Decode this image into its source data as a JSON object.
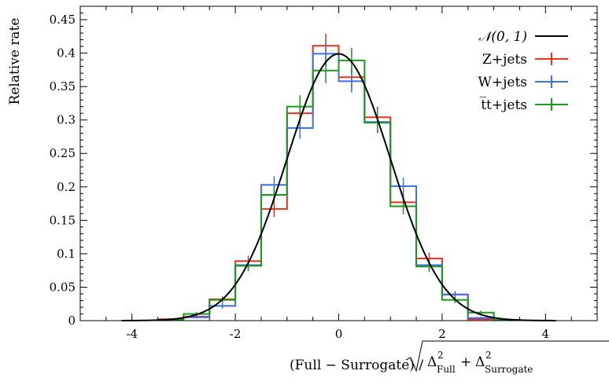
{
  "chart_data": {
    "type": "histogram",
    "ylabel": "Relative rate",
    "xlabel": {
      "main": "(Full − Surrogate) /",
      "sqrt_part1_delta": "Δ",
      "sqrt_part1_exp": "2",
      "sqrt_part1_sub": "Full",
      "sqrt_plus": "+",
      "sqrt_part2_delta": "Δ",
      "sqrt_part2_exp": "2",
      "sqrt_part2_sub": "Surrogate"
    },
    "xlim": [
      -5,
      5
    ],
    "ylim": [
      0,
      0.47
    ],
    "x_ticks": [
      -4,
      -2,
      0,
      2,
      4
    ],
    "y_ticks": [
      0,
      0.05,
      0.1,
      0.15,
      0.2,
      0.25,
      0.3,
      0.35,
      0.4,
      0.45
    ],
    "x_tick_labels": [
      "-4",
      "-2",
      "0",
      "2",
      "4"
    ],
    "y_tick_labels": [
      "0",
      "0.05",
      "0.1",
      "0.15",
      "0.2",
      "0.25",
      "0.3",
      "0.35",
      "0.4",
      "0.45"
    ],
    "bin_edges": [
      -3.5,
      -3.0,
      -2.5,
      -2.0,
      -1.5,
      -1.0,
      -0.5,
      0.0,
      0.5,
      1.0,
      1.5,
      2.0,
      2.5,
      3.0,
      3.5
    ],
    "curve": {
      "name": "𝒩(0, 1)",
      "color": "#000000",
      "mu": 0,
      "sigma": 1
    },
    "series": [
      {
        "name": "Z+jets",
        "color": "#e8321a",
        "values": [
          0.002,
          0.006,
          0.032,
          0.089,
          0.167,
          0.31,
          0.411,
          0.364,
          0.304,
          0.177,
          0.093,
          0.039,
          0.002,
          0.001
        ],
        "errors": [
          0.001,
          0.002,
          0.004,
          0.008,
          0.012,
          0.016,
          0.018,
          0.017,
          0.016,
          0.012,
          0.009,
          0.005,
          0.001,
          0.001
        ]
      },
      {
        "name": "W+jets",
        "color": "#3d6ee6",
        "values": [
          0.001,
          0.005,
          0.022,
          0.083,
          0.203,
          0.288,
          0.399,
          0.358,
          0.297,
          0.201,
          0.083,
          0.039,
          0.004,
          0.001
        ],
        "errors": [
          0.001,
          0.002,
          0.004,
          0.008,
          0.013,
          0.016,
          0.018,
          0.017,
          0.016,
          0.013,
          0.008,
          0.005,
          0.002,
          0.001
        ]
      },
      {
        "name": "t̅t+jets",
        "color": "#1a9a1a",
        "values": [
          0.001,
          0.01,
          0.031,
          0.082,
          0.188,
          0.32,
          0.374,
          0.389,
          0.296,
          0.171,
          0.081,
          0.031,
          0.012,
          0.001
        ],
        "errors": [
          0.001,
          0.003,
          0.005,
          0.008,
          0.013,
          0.017,
          0.019,
          0.019,
          0.016,
          0.012,
          0.008,
          0.005,
          0.003,
          0.001
        ]
      }
    ],
    "legend": {
      "placement": "top-right",
      "entries": [
        "𝒩(0, 1)",
        "Z+jets",
        "W+jets",
        "t̅t+jets"
      ]
    }
  }
}
